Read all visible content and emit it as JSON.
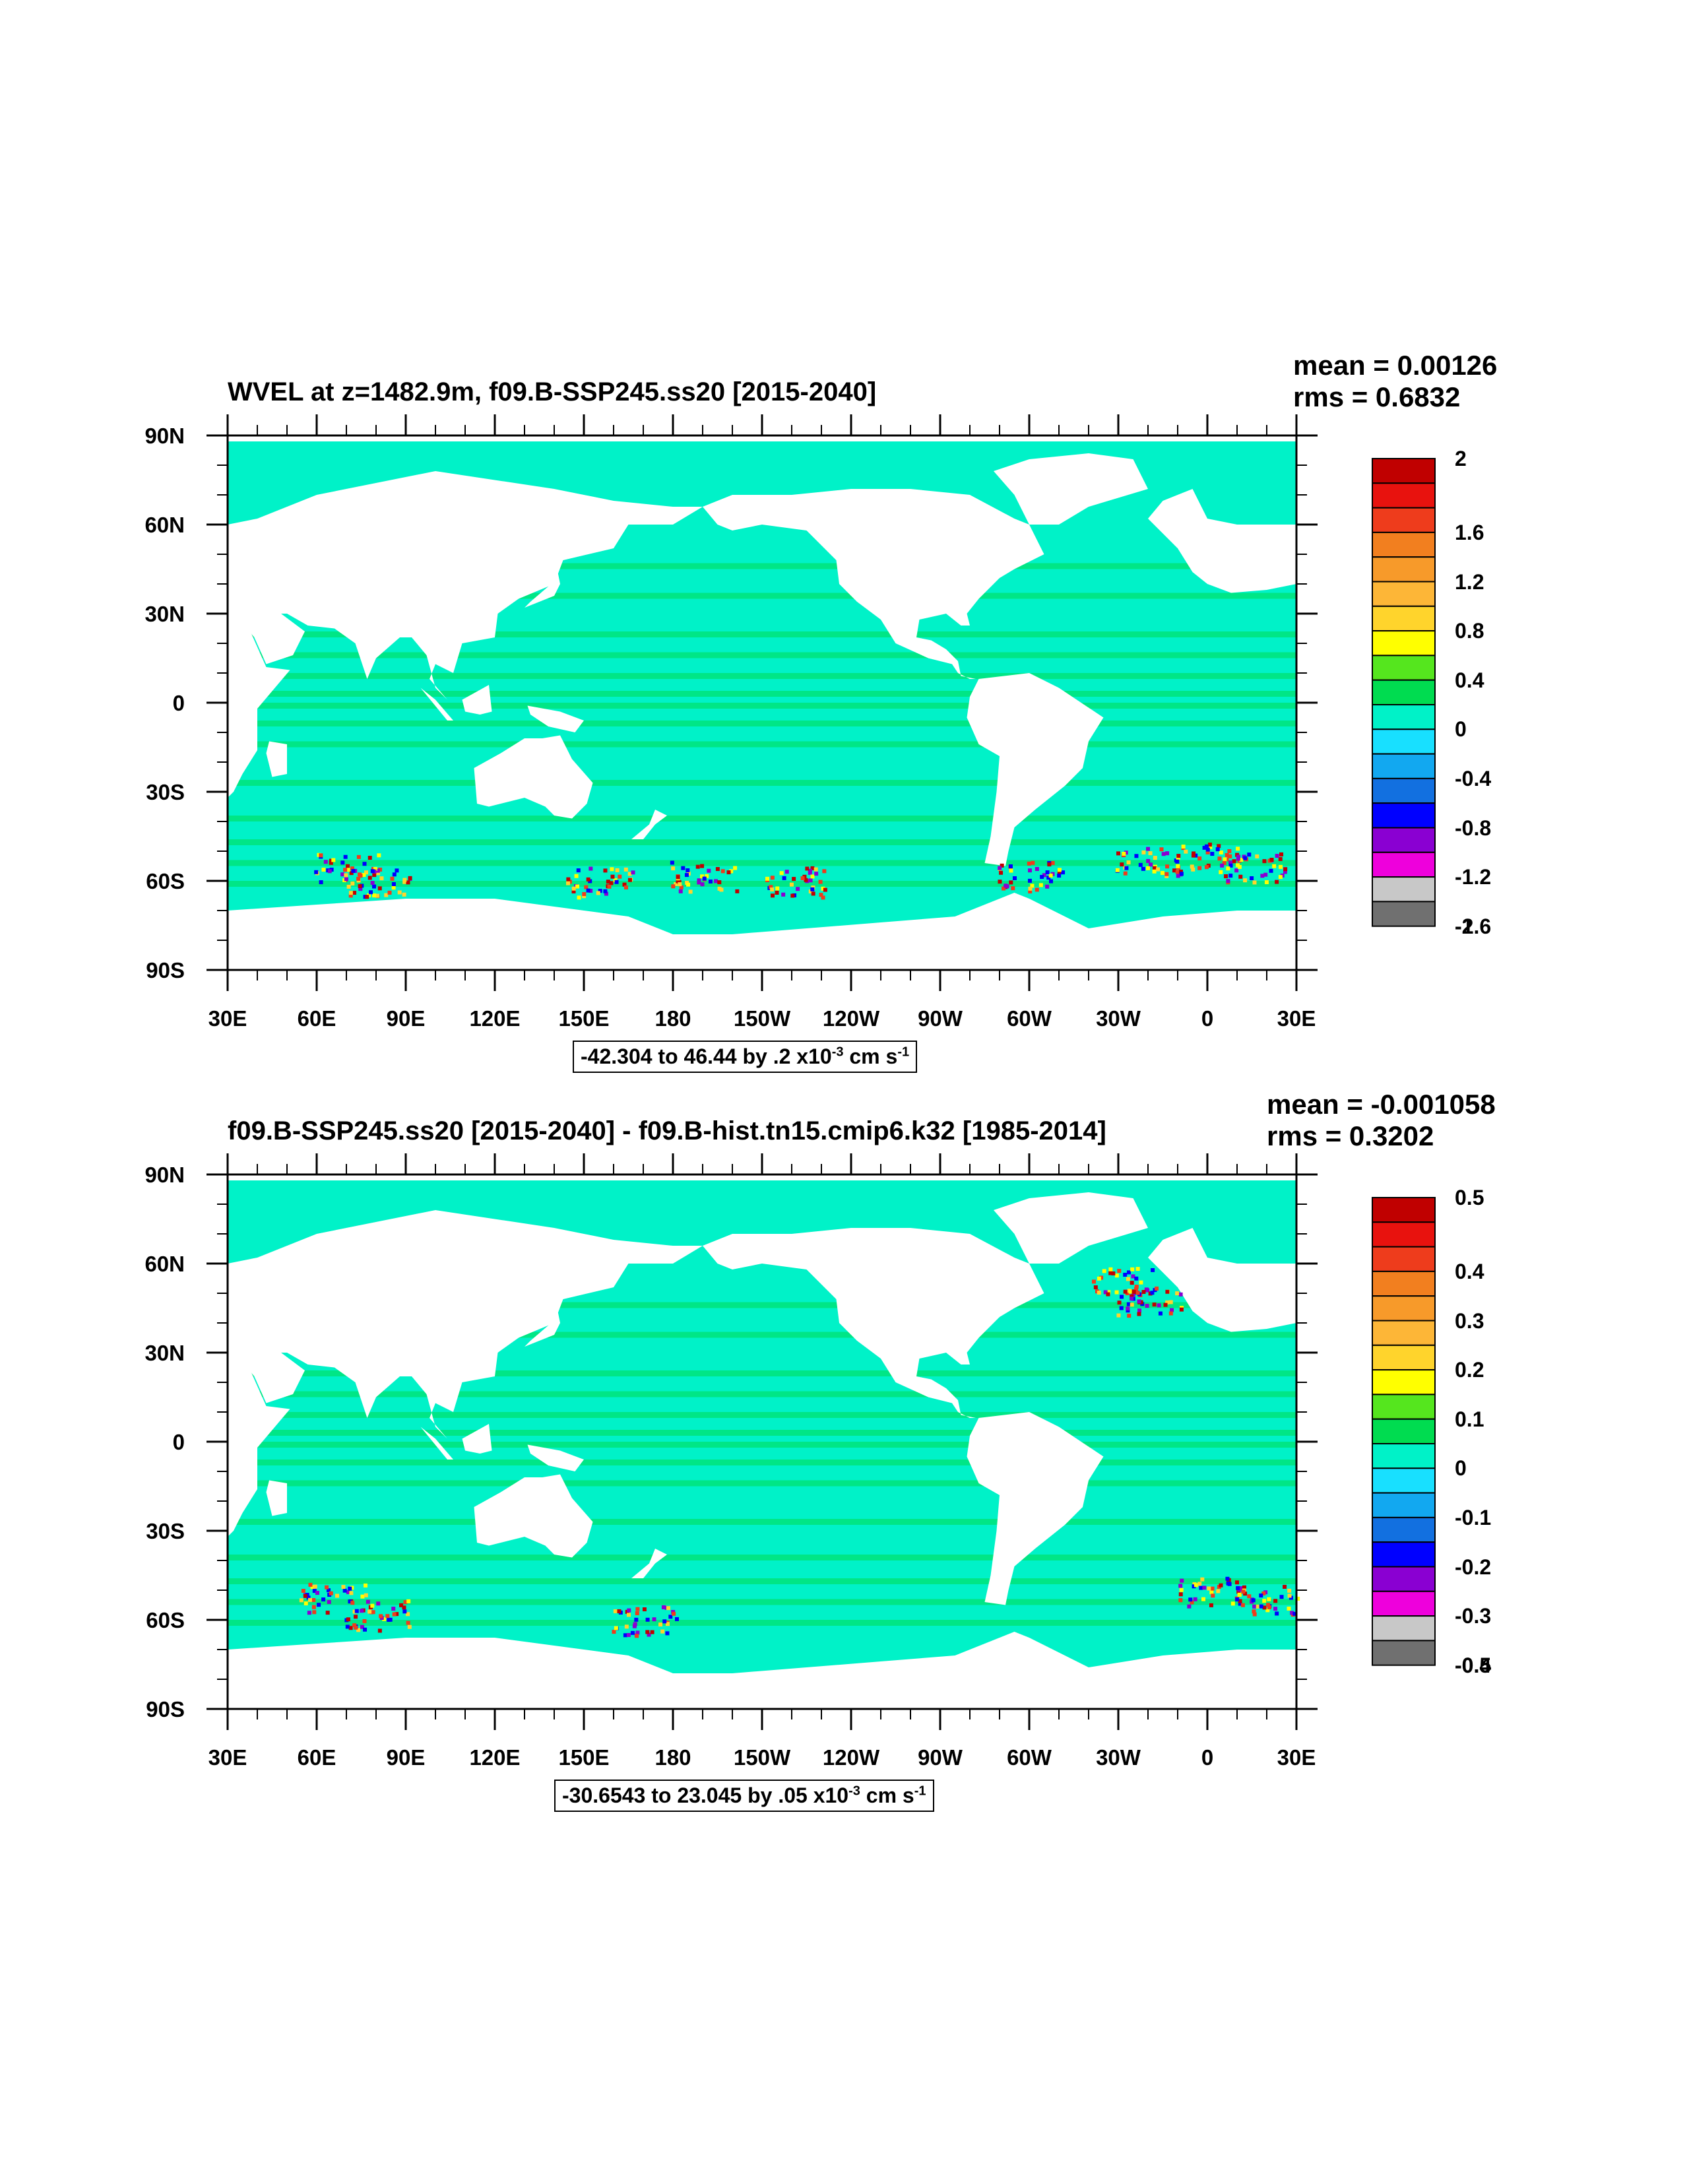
{
  "panels": [
    {
      "title": "WVEL at z=1482.9m, f09.B-SSP245.ss20 [2015-2040]",
      "mean_label": "mean = 0.00126",
      "rms_label": "rms = 0.6832",
      "range": {
        "text": "-42.304 to 46.44 by .2 x10",
        "exponent": "-3",
        "unit_main": " cm s",
        "unit_exp": "-1"
      },
      "colorbar_labels": [
        "2",
        "1.6",
        "1.2",
        "0.8",
        "0.4",
        "0",
        "-0.4",
        "-0.8",
        "-1.2",
        "-1.6",
        "-2"
      ]
    },
    {
      "title": "f09.B-SSP245.ss20 [2015-2040] - f09.B-hist.tn15.cmip6.k32 [1985-2014]",
      "mean_label": "mean = -0.001058",
      "rms_label": "rms = 0.3202",
      "range": {
        "text": "-30.6543 to 23.045 by .05 x10",
        "exponent": "-3",
        "unit_main": " cm s",
        "unit_exp": "-1"
      },
      "colorbar_labels": [
        "0.5",
        "0.4",
        "0.3",
        "0.2",
        "0.1",
        "0",
        "-0.1",
        "-0.2",
        "-0.3",
        "-0.4",
        "-0.5"
      ]
    }
  ],
  "axes": {
    "lat_labels": [
      "90N",
      "60N",
      "30N",
      "0",
      "30S",
      "60S",
      "90S"
    ],
    "lon_labels": [
      "30E",
      "60E",
      "90E",
      "120E",
      "150E",
      "180",
      "150W",
      "120W",
      "90W",
      "60W",
      "30W",
      "0",
      "30E"
    ]
  },
  "colors": {
    "colorbar": [
      "#c00000",
      "#e8120e",
      "#ee3c1c",
      "#f27f1f",
      "#f79a2a",
      "#fdb637",
      "#ffd42c",
      "#ffff00",
      "#55e61e",
      "#00dc50",
      "#00f2c8",
      "#18e0ff",
      "#12a8f0",
      "#1270e0",
      "#0000ff",
      "#8a00d2",
      "#ee00dc",
      "#c8c8c8",
      "#707070"
    ],
    "ocean_base": "#00f2c8",
    "ocean_band": "#00dc50",
    "land": "#ffffff"
  }
}
